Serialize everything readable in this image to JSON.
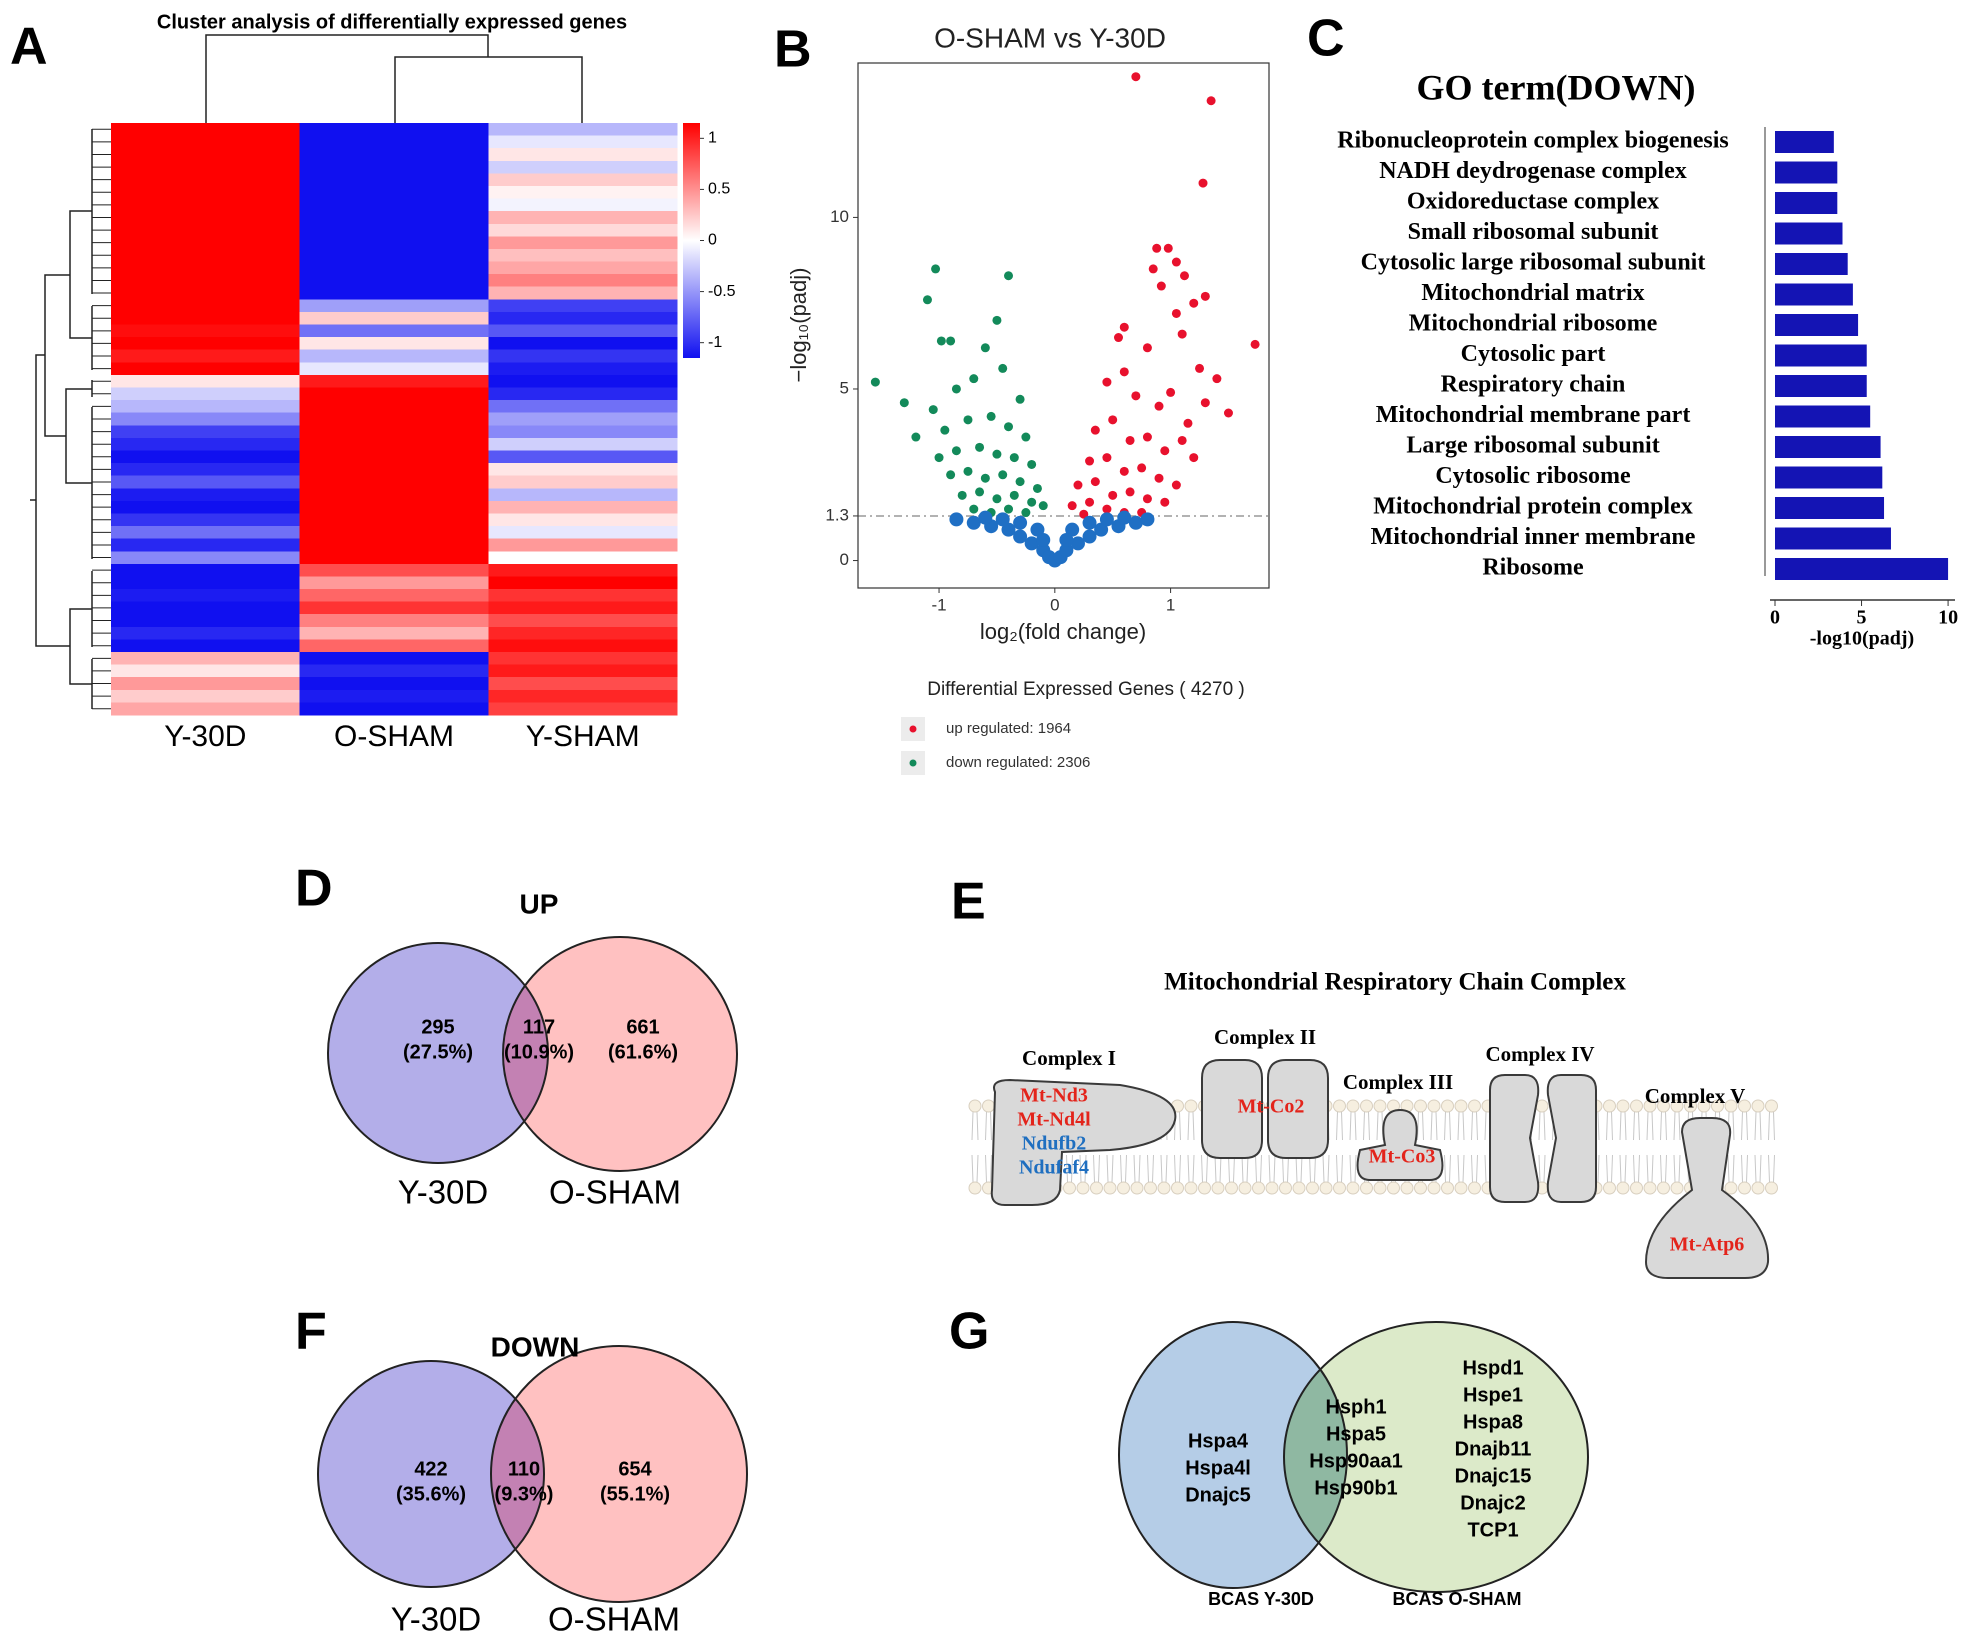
{
  "panel_labels": [
    "A",
    "B",
    "C",
    "D",
    "E",
    "F",
    "G"
  ],
  "chart_data": [
    {
      "type": "heatmap",
      "title": "Cluster analysis of differentially expressed genes",
      "columns": [
        "Y-30D",
        "O-SHAM",
        "Y-SHAM"
      ],
      "values": [
        [
          1,
          -1,
          -0.3
        ],
        [
          1,
          -1,
          -0.1
        ],
        [
          1,
          -1,
          0.1
        ],
        [
          1,
          -1,
          -0.2
        ],
        [
          1,
          -1,
          0.2
        ],
        [
          1,
          -1,
          0.05
        ],
        [
          1,
          -1,
          -0.05
        ],
        [
          1,
          -1,
          0.3
        ],
        [
          1,
          -1,
          0.15
        ],
        [
          1,
          -1,
          0.4
        ],
        [
          1,
          -1,
          0.25
        ],
        [
          1,
          -1,
          0.35
        ],
        [
          1,
          -1,
          0.5
        ],
        [
          1,
          -1,
          0.3
        ],
        [
          1,
          -0.4,
          -0.8
        ],
        [
          1,
          0.2,
          -0.9
        ],
        [
          0.95,
          -0.6,
          -0.7
        ],
        [
          1,
          0.1,
          -1
        ],
        [
          0.9,
          -0.3,
          -0.85
        ],
        [
          1,
          -0.1,
          -0.95
        ],
        [
          0.1,
          0.9,
          -1
        ],
        [
          -0.2,
          1,
          -0.9
        ],
        [
          -0.3,
          1,
          -0.6
        ],
        [
          -0.5,
          1,
          -0.4
        ],
        [
          -0.8,
          1,
          -0.5
        ],
        [
          -0.9,
          1,
          -0.2
        ],
        [
          -1,
          1,
          -0.7
        ],
        [
          -0.9,
          1,
          0.1
        ],
        [
          -0.7,
          1,
          0.2
        ],
        [
          -0.95,
          1,
          -0.3
        ],
        [
          -1,
          1,
          0.3
        ],
        [
          -0.85,
          1,
          0.1
        ],
        [
          -0.6,
          1,
          -0.1
        ],
        [
          -0.9,
          1,
          0.4
        ],
        [
          -0.5,
          1,
          0
        ],
        [
          -1,
          0.7,
          0.9
        ],
        [
          -1,
          0.4,
          1
        ],
        [
          -0.95,
          0.6,
          0.8
        ],
        [
          -1,
          0.8,
          0.9
        ],
        [
          -1,
          0.5,
          0.7
        ],
        [
          -0.9,
          0.3,
          0.85
        ],
        [
          -1,
          0.6,
          0.95
        ],
        [
          0.3,
          -1,
          0.8
        ],
        [
          0.1,
          -0.9,
          0.9
        ],
        [
          0.4,
          -1,
          0.7
        ],
        [
          0.2,
          -0.95,
          0.85
        ],
        [
          0.35,
          -1,
          0.75
        ]
      ],
      "colorbar_lim": [
        -1.15,
        1.15
      ],
      "colorbar_ticks": [
        1,
        0.5,
        0,
        -0.5,
        -1
      ],
      "low_color": "#1010f0",
      "high_color": "#ff0000"
    },
    {
      "type": "scatter",
      "title": "O-SHAM vs Y-30D",
      "x_label": "log₂(fold change)",
      "y_label": "−log₁₀(padj)",
      "xlim": [
        -1.7,
        1.85
      ],
      "ylim": [
        -0.8,
        14.5
      ],
      "xticks": [
        -1,
        0,
        1
      ],
      "yticks": [
        0,
        1.3,
        5,
        10
      ],
      "threshold": 1.3,
      "legend_title": "Differential Expressed Genes ( 4270 )",
      "series": [
        {
          "name": "up regulated: 1964",
          "color": "#e8112d",
          "x": [
            0.7,
            1.35,
            1.28,
            1.73,
            0.88,
            0.98,
            0.85,
            1.05,
            1.12,
            0.92,
            1.2,
            1.3,
            1.05,
            0.55,
            0.6,
            0.8,
            1.1,
            1.25,
            1.4,
            1.5,
            0.45,
            0.6,
            0.7,
            0.9,
            1.0,
            1.15,
            1.3,
            0.35,
            0.5,
            0.65,
            0.8,
            0.95,
            1.1,
            1.2,
            0.3,
            0.45,
            0.6,
            0.75,
            0.9,
            1.05,
            0.2,
            0.35,
            0.5,
            0.65,
            0.8,
            0.95,
            0.15,
            0.3,
            0.45,
            0.6,
            0.75,
            0.25
          ],
          "values": [
            14.1,
            13.4,
            11,
            6.3,
            9.1,
            9.1,
            8.5,
            8.7,
            8.3,
            8.0,
            7.5,
            7.7,
            7.2,
            6.5,
            6.8,
            6.2,
            6.6,
            5.6,
            5.3,
            4.3,
            5.2,
            5.5,
            4.8,
            4.5,
            4.9,
            4.0,
            4.6,
            3.8,
            4.1,
            3.5,
            3.6,
            3.2,
            3.5,
            3.0,
            2.9,
            3.0,
            2.6,
            2.7,
            2.4,
            2.2,
            2.2,
            2.3,
            1.9,
            2.0,
            1.8,
            1.7,
            1.6,
            1.7,
            1.5,
            1.4,
            1.4,
            1.35
          ]
        },
        {
          "name": "down regulated: 2306",
          "color": "#138a5a",
          "x": [
            -1.55,
            -1.03,
            -0.4,
            -1.1,
            -0.98,
            -0.9,
            -0.5,
            -0.6,
            -1.3,
            -1.05,
            -0.85,
            -0.7,
            -0.45,
            -0.3,
            -1.2,
            -0.95,
            -0.75,
            -0.55,
            -0.4,
            -0.25,
            -1.0,
            -0.85,
            -0.65,
            -0.5,
            -0.35,
            -0.2,
            -0.9,
            -0.75,
            -0.6,
            -0.45,
            -0.3,
            -0.15,
            -0.8,
            -0.65,
            -0.5,
            -0.35,
            -0.2,
            -0.7,
            -0.55,
            -0.4,
            -0.25,
            -0.1
          ],
          "values": [
            5.2,
            8.5,
            8.3,
            7.6,
            6.4,
            6.4,
            7.0,
            6.2,
            4.6,
            4.4,
            5.0,
            5.3,
            5.6,
            4.7,
            3.6,
            3.8,
            4.1,
            4.2,
            3.9,
            3.6,
            3.0,
            3.2,
            3.3,
            3.1,
            3.0,
            2.8,
            2.5,
            2.6,
            2.4,
            2.5,
            2.3,
            2.1,
            1.9,
            2.0,
            1.8,
            1.9,
            1.7,
            1.5,
            1.4,
            1.5,
            1.4,
            1.6
          ]
        },
        {
          "color": "#1f6fc4",
          "x": [
            -0.85,
            -0.7,
            -0.55,
            -0.4,
            -0.3,
            -0.2,
            -0.1,
            -0.05,
            0,
            0.05,
            0.1,
            0.2,
            0.3,
            0.4,
            0.55,
            0.7,
            0.8,
            -0.6,
            -0.45,
            -0.3,
            -0.15,
            0.15,
            0.3,
            0.45,
            0.6,
            -0.1,
            0.1
          ],
          "values": [
            1.2,
            1.1,
            1.0,
            0.9,
            0.7,
            0.5,
            0.3,
            0.1,
            0,
            0.1,
            0.3,
            0.5,
            0.7,
            0.9,
            1.0,
            1.1,
            1.2,
            1.25,
            1.2,
            1.1,
            0.9,
            0.9,
            1.1,
            1.2,
            1.25,
            0.6,
            0.6
          ]
        }
      ]
    },
    {
      "type": "hbar",
      "title": "GO term(DOWN)",
      "x_label": "-log10(padj)",
      "categories": [
        "Ribonucleoprotein complex biogenesis",
        "NADH deydrogenase complex",
        "Oxidoreductase complex",
        "Small ribosomal subunit",
        "Cytosolic large ribosomal subunit",
        "Mitochondrial matrix",
        "Mitochondrial ribosome",
        "Cytosolic part",
        "Respiratory chain",
        "Mitochondrial membrane part",
        "Large ribosomal subunit",
        "Cytosolic ribosome",
        "Mitochondrial protein complex",
        "Mitochondrial inner membrane",
        "Ribosome"
      ],
      "values": [
        3.4,
        3.6,
        3.6,
        3.9,
        4.2,
        4.5,
        4.8,
        5.3,
        5.3,
        5.5,
        6.1,
        6.2,
        6.3,
        6.7,
        10.0
      ],
      "color": "#1414b4",
      "xlim": [
        0,
        10.4
      ],
      "xticks": [
        0,
        5,
        10
      ]
    }
  ],
  "venn_up": {
    "title": "UP",
    "sets": [
      "Y-30D",
      "O-SHAM"
    ],
    "counts": [
      295,
      117,
      661
    ],
    "percents": [
      "(27.5%)",
      "(10.9%)",
      "(61.6%)"
    ]
  },
  "respiratory_chain": {
    "title": "Mitochondrial  Respiratory  Chain  Complex",
    "complexes": [
      {
        "name": "Complex I",
        "genes": [
          {
            "text": "Mt-Nd3",
            "color": "#e3241b"
          },
          {
            "text": "Mt-Nd4l",
            "color": "#e3241b"
          },
          {
            "text": "Ndufb2",
            "color": "#1f6fc0"
          },
          {
            "text": "Ndufaf4",
            "color": "#1f6fc0"
          }
        ]
      },
      {
        "name": "Complex II",
        "genes": [
          {
            "text": "Mt-Co2",
            "color": "#e3241b"
          }
        ]
      },
      {
        "name": "Complex III",
        "genes": [
          {
            "text": "Mt-Co3",
            "color": "#e3241b"
          }
        ]
      },
      {
        "name": "Complex IV",
        "genes": []
      },
      {
        "name": "Complex V",
        "genes": [
          {
            "text": "Mt-Atp6",
            "color": "#e3241b"
          }
        ]
      }
    ]
  },
  "venn_down": {
    "title": "DOWN",
    "sets": [
      "Y-30D",
      "O-SHAM"
    ],
    "counts": [
      422,
      110,
      654
    ],
    "percents": [
      "(35.6%)",
      "(9.3%)",
      "(55.1%)"
    ]
  },
  "venn_chaperones": {
    "sets": [
      "BCAS Y-30D",
      "BCAS O-SHAM"
    ],
    "left_only": [
      "Hspa4",
      "Hspa4l",
      "Dnajc5"
    ],
    "shared": [
      "Hsph1",
      "Hspa5",
      "Hsp90aa1",
      "Hsp90b1"
    ],
    "right_only": [
      "Hspd1",
      "Hspe1",
      "Hspa8",
      "Dnajb11",
      "Dnajc15",
      "Dnajc2",
      "TCP1"
    ]
  }
}
